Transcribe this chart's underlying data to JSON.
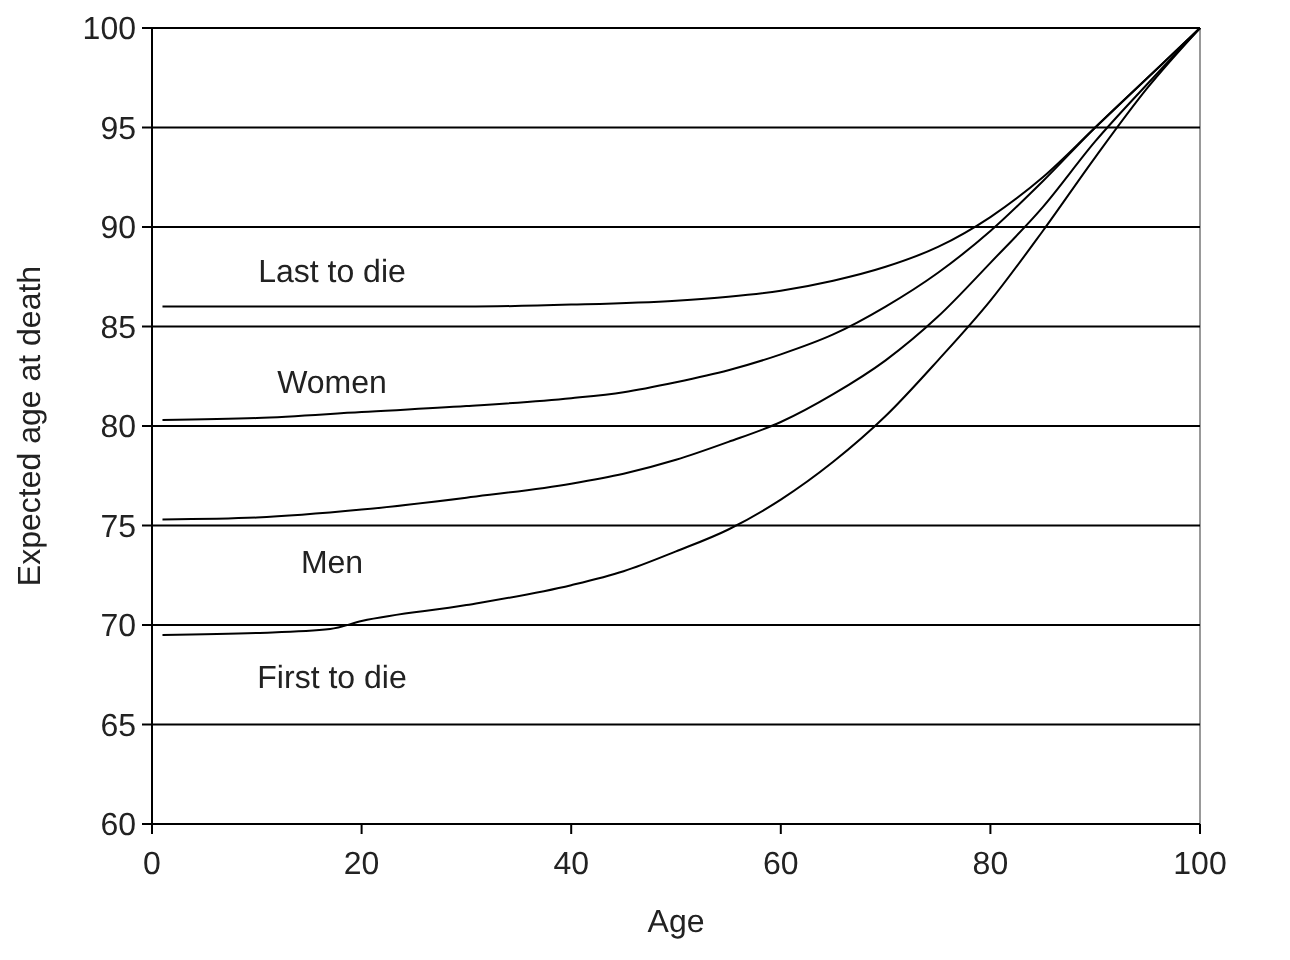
{
  "chart_data": {
    "type": "line",
    "xlabel": "Age",
    "ylabel": "Expected age at death",
    "xlim": [
      0,
      100
    ],
    "xticks": [
      0,
      20,
      40,
      60,
      80,
      100
    ],
    "ylim": [
      60,
      100
    ],
    "yticks": [
      60,
      65,
      70,
      75,
      80,
      85,
      90,
      95,
      100
    ],
    "grid": "y",
    "marker": "none",
    "line_style": "solid",
    "series": [
      {
        "name": "Last to die",
        "color": "#000000",
        "x": [
          1,
          10,
          20,
          30,
          40,
          50,
          55,
          60,
          65,
          70,
          75,
          80,
          85,
          90,
          95,
          100
        ],
        "values": [
          86,
          86,
          86,
          86,
          86.1,
          86.3,
          86.5,
          86.8,
          87.3,
          88,
          89,
          90.5,
          92.5,
          95,
          97.5,
          100
        ]
      },
      {
        "name": "Women",
        "color": "#000000",
        "x": [
          1,
          10,
          20,
          30,
          40,
          45,
          50,
          55,
          60,
          65,
          70,
          75,
          80,
          85,
          90,
          95,
          100
        ],
        "values": [
          80.3,
          80.4,
          80.7,
          81,
          81.4,
          81.7,
          82.2,
          82.8,
          83.6,
          84.6,
          86,
          87.7,
          89.8,
          92.3,
          95,
          97.5,
          100
        ]
      },
      {
        "name": "Men",
        "color": "#000000",
        "x": [
          1,
          10,
          20,
          30,
          40,
          45,
          50,
          55,
          60,
          65,
          70,
          75,
          80,
          85,
          90,
          95,
          100
        ],
        "values": [
          75.3,
          75.4,
          75.8,
          76.4,
          77.1,
          77.6,
          78.3,
          79.2,
          80.2,
          81.6,
          83.3,
          85.5,
          88.2,
          91,
          94.3,
          97.2,
          100
        ]
      },
      {
        "name": "First to die",
        "color": "#000000",
        "x": [
          1,
          10,
          17,
          20,
          30,
          40,
          45,
          50,
          55,
          60,
          65,
          70,
          75,
          80,
          85,
          90,
          95,
          100
        ],
        "values": [
          69.5,
          69.6,
          69.8,
          70.2,
          71,
          72,
          72.7,
          73.7,
          74.8,
          76.3,
          78.2,
          80.5,
          83.3,
          86.3,
          89.8,
          93.5,
          97,
          100
        ]
      }
    ]
  }
}
